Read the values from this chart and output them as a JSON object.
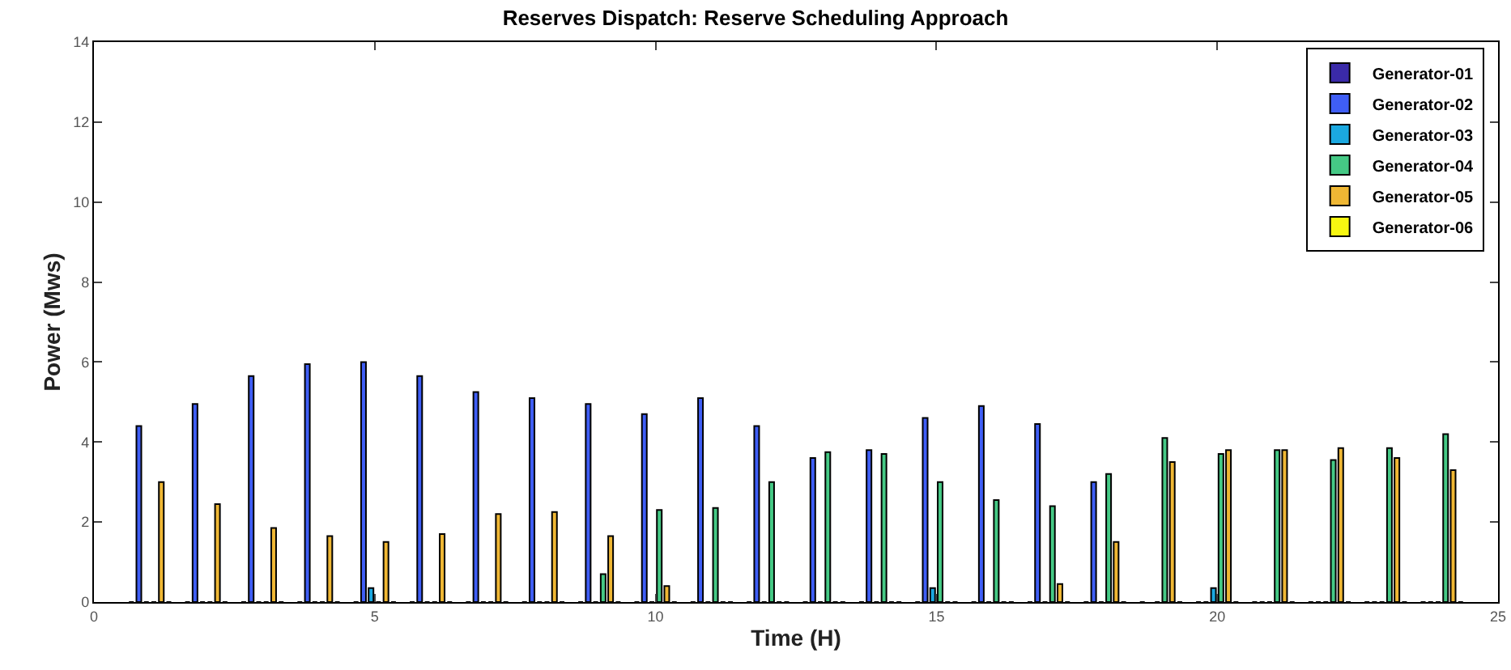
{
  "chart_data": {
    "type": "bar",
    "title": "Reserves Dispatch: Reserve Scheduling Approach",
    "xlabel": "Time (H)",
    "ylabel": "Power (Mws)",
    "x": [
      1,
      2,
      3,
      4,
      5,
      6,
      7,
      8,
      9,
      10,
      11,
      12,
      13,
      14,
      15,
      16,
      17,
      18,
      19,
      20,
      21,
      22,
      23,
      24
    ],
    "xlim": [
      0,
      25
    ],
    "xticks": [
      0,
      5,
      10,
      15,
      20,
      {
        "value": 25,
        "label": "25"
      }
    ],
    "ylim": [
      0,
      14
    ],
    "yticks": [
      0,
      2,
      4,
      6,
      8,
      10,
      12,
      14
    ],
    "grid": false,
    "legend": "top right",
    "series": [
      {
        "name": "Generator-01",
        "color": "#3a2aa8",
        "values": [
          0,
          0,
          0,
          0,
          0,
          0,
          0,
          0,
          0,
          0,
          0,
          0,
          0,
          0,
          0,
          0,
          0,
          0,
          0,
          0,
          0,
          0,
          0,
          0
        ]
      },
      {
        "name": "Generator-02",
        "color": "#3f5ef5",
        "values": [
          4.4,
          4.95,
          5.65,
          5.95,
          6.0,
          5.65,
          5.25,
          5.1,
          4.95,
          4.7,
          5.1,
          4.4,
          3.6,
          3.8,
          4.6,
          4.9,
          4.45,
          3.0,
          null,
          0,
          0,
          0,
          0,
          0
        ]
      },
      {
        "name": "Generator-03",
        "color": "#1ba8e0",
        "values": [
          0,
          0,
          0,
          0,
          0.35,
          0,
          0,
          0,
          0,
          0,
          0,
          0,
          0,
          0,
          0.35,
          0,
          0,
          0,
          0,
          0.35,
          0,
          0,
          0,
          0
        ]
      },
      {
        "name": "Generator-04",
        "color": "#45c985",
        "values": [
          0,
          0,
          0,
          0,
          0,
          0,
          0,
          0,
          0.7,
          2.3,
          2.35,
          3.0,
          3.75,
          3.7,
          3.0,
          2.55,
          2.4,
          3.2,
          4.1,
          3.7,
          3.8,
          3.55,
          3.85,
          4.2
        ]
      },
      {
        "name": "Generator-05",
        "color": "#efb734",
        "values": [
          3.0,
          2.45,
          1.85,
          1.65,
          1.5,
          1.7,
          2.2,
          2.25,
          1.65,
          0.4,
          0,
          0,
          0,
          0,
          0,
          0,
          0.45,
          1.5,
          3.5,
          3.8,
          3.8,
          3.85,
          3.6,
          3.3
        ]
      },
      {
        "name": "Generator-06",
        "color": "#f7f711",
        "values": [
          0,
          0,
          0,
          0,
          0,
          0,
          0,
          0,
          0,
          0,
          0,
          0,
          0,
          0,
          0,
          0,
          0,
          0,
          0,
          0,
          0,
          0,
          0,
          0
        ]
      }
    ]
  }
}
